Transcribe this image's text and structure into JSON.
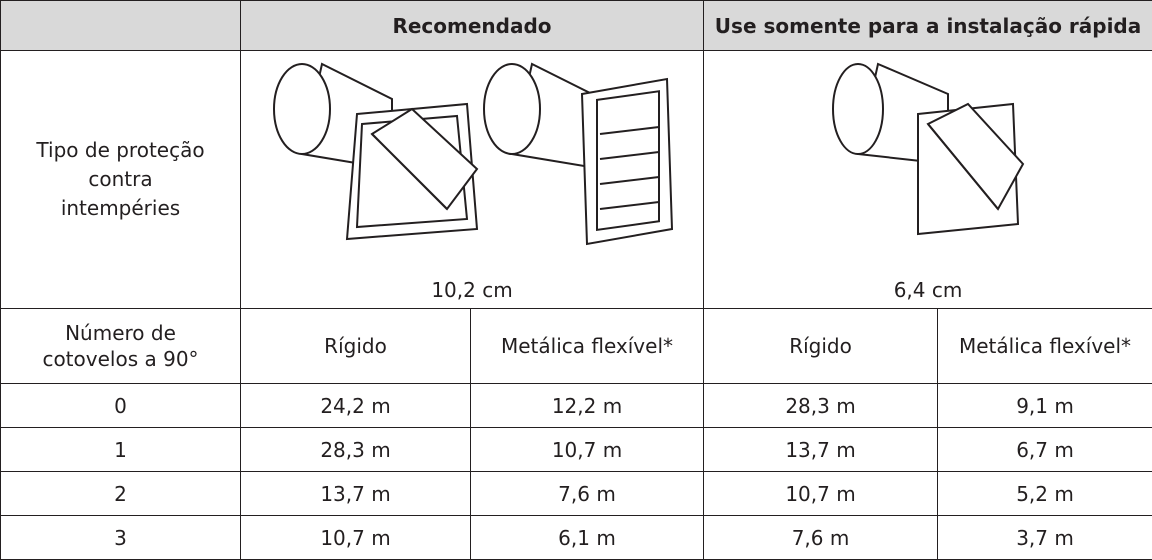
{
  "table": {
    "header": [
      "Recomendado",
      "Use somente para a instalação rápida"
    ],
    "type_label": "Tipo de proteção contra intempéries",
    "sizes": [
      "10,2 cm",
      "6,4 cm"
    ],
    "elbows_label": "Número de cotovelos a 90°",
    "subheaders": [
      "Rígido",
      "Metálica flexível*",
      "Rígido",
      "Metálica flexível*"
    ],
    "rows": [
      [
        "0",
        "24,2 m",
        "12,2 m",
        "28,3 m",
        "9,1 m"
      ],
      [
        "1",
        "28,3 m",
        "10,7 m",
        "13,7 m",
        "6,7 m"
      ],
      [
        "2",
        "13,7 m",
        "7,6 m",
        "10,7 m",
        "5,2 m"
      ],
      [
        "3",
        "10,7 m",
        "6,1 m",
        "7,6 m",
        "3,7 m"
      ]
    ]
  }
}
